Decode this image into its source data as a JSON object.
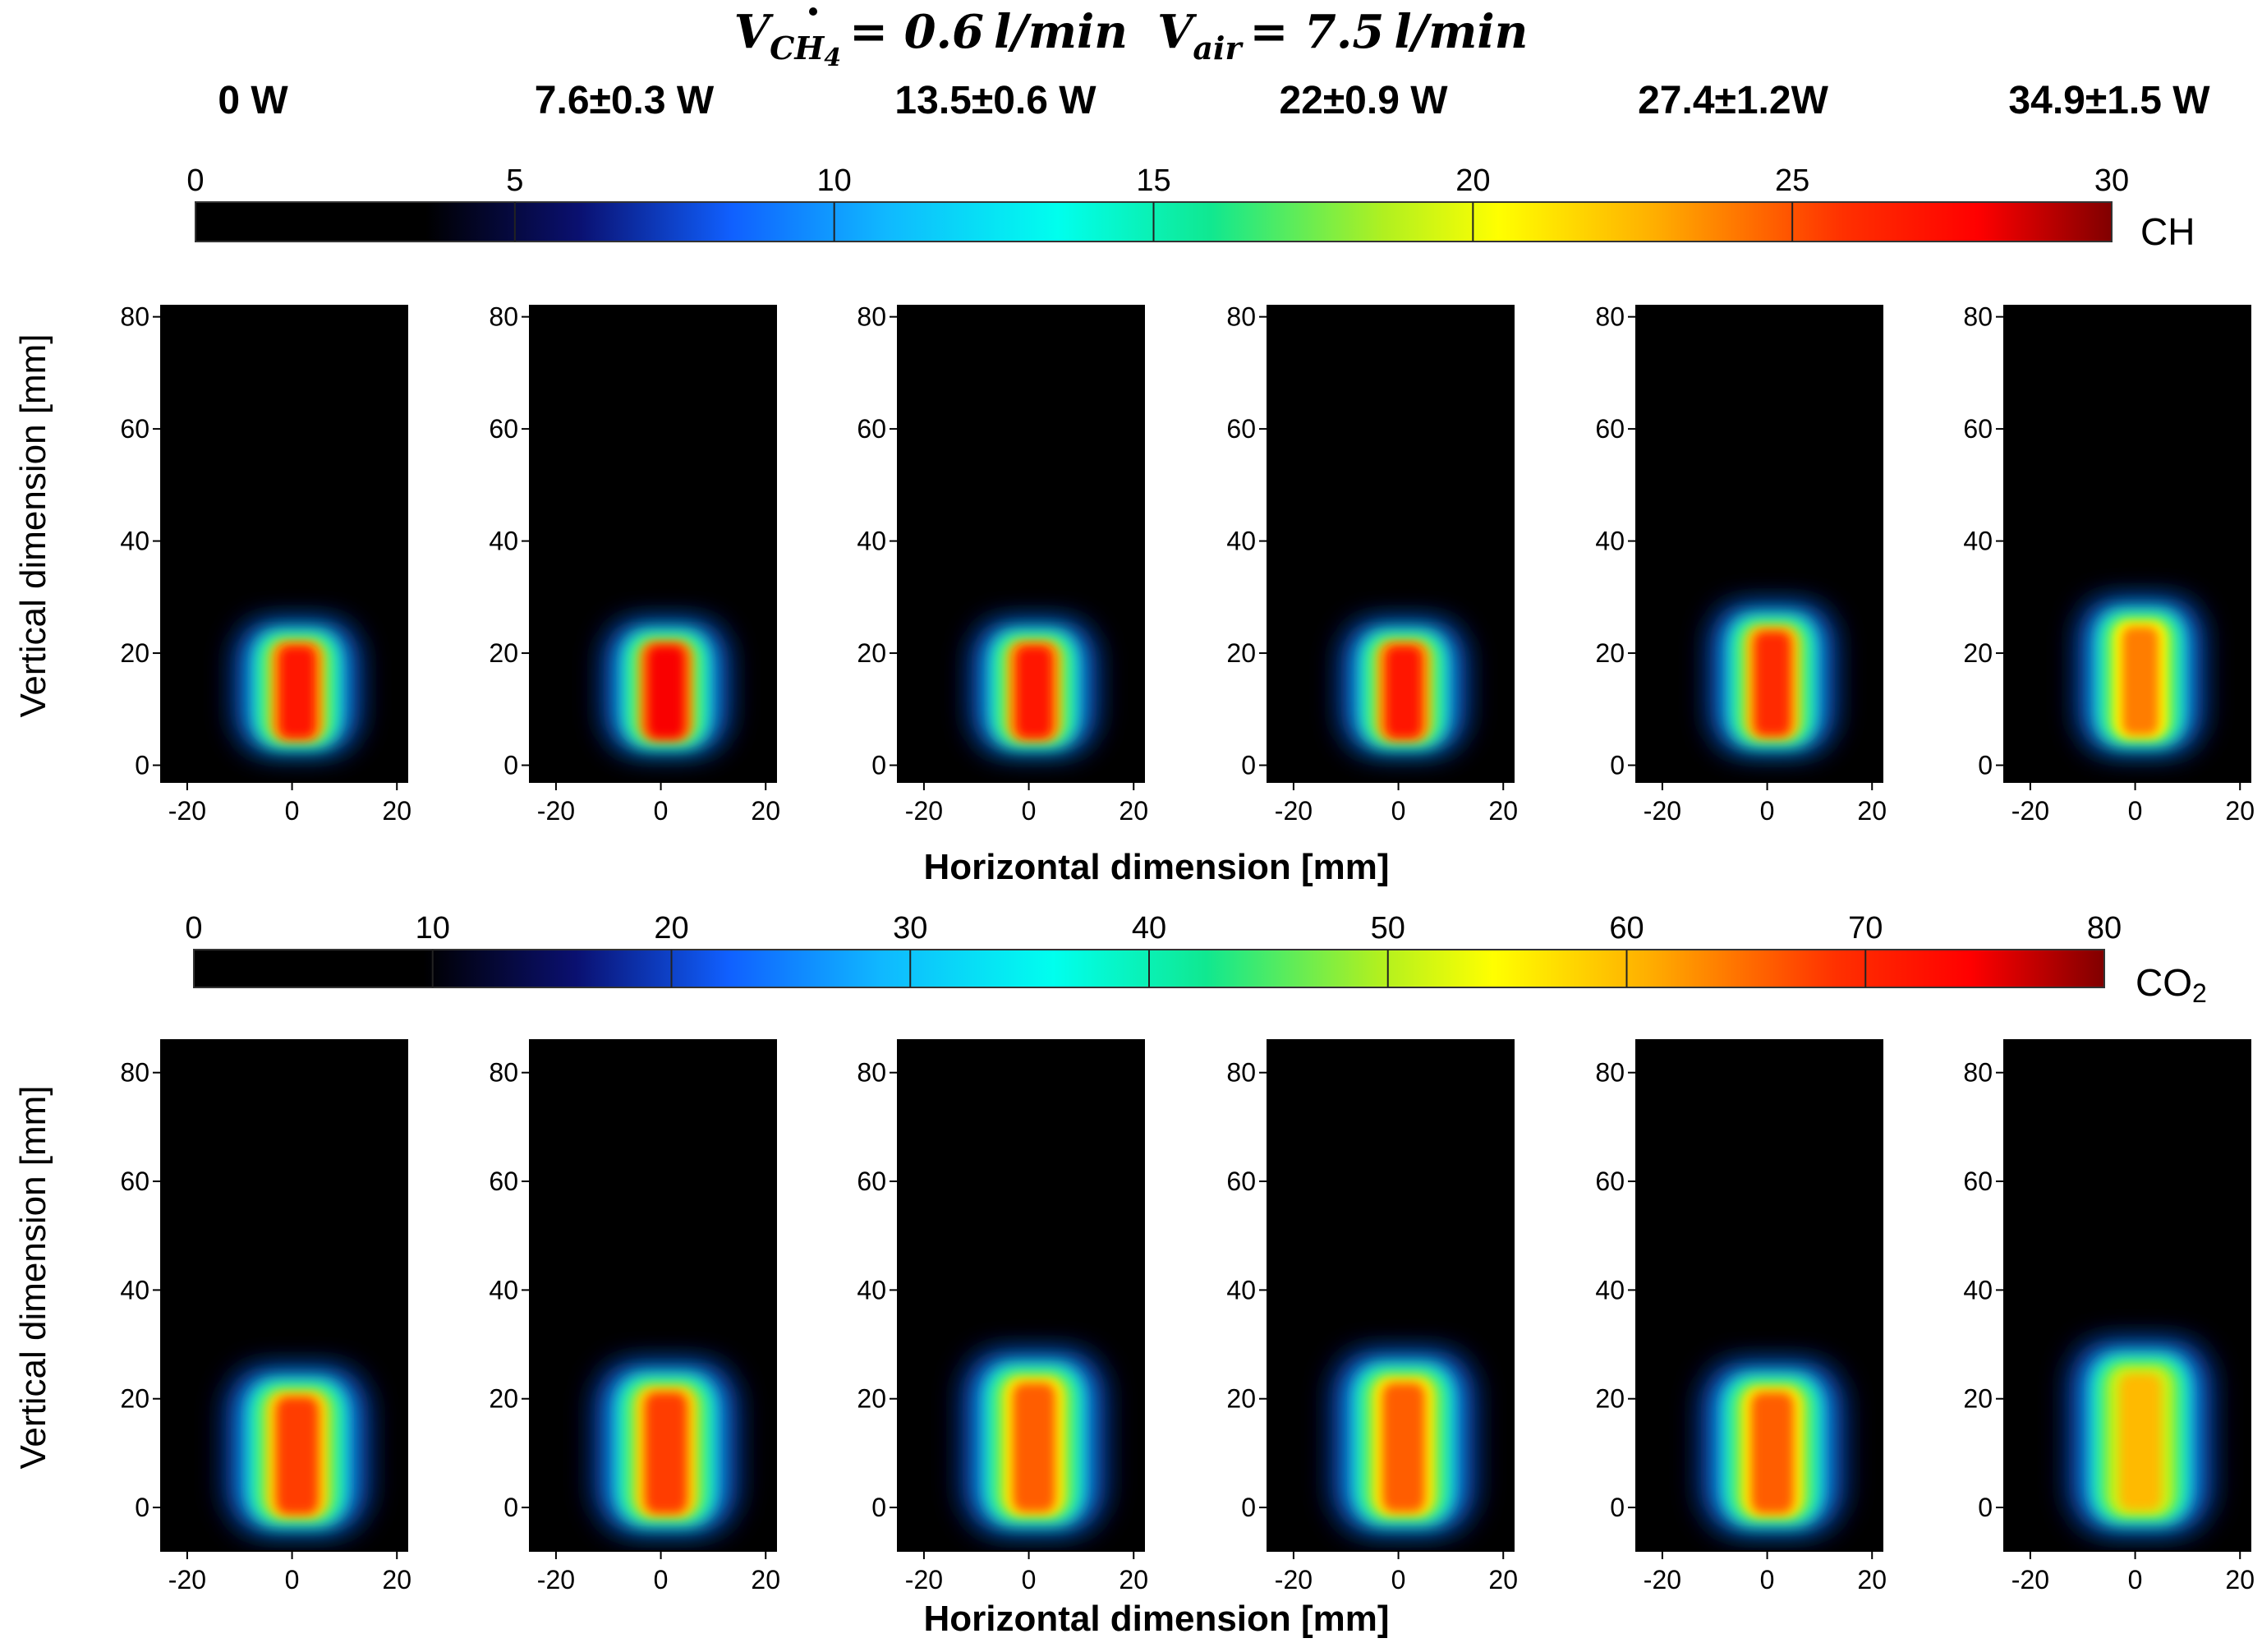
{
  "chart_data": {
    "type": "heatmap",
    "title": {
      "v_ch4_symbol": "V",
      "v_ch4_subscript": "CH",
      "v_ch4_subscript_digit": "4",
      "v_ch4_value": "= 0.6",
      "v_ch4_unit": "l/min",
      "v_air_symbol": "V",
      "v_air_subscript": "air",
      "v_air_value": "= 7.5",
      "v_air_unit": "l/min"
    },
    "power_labels": [
      "0 W",
      "7.6±0.3 W",
      "13.5±0.6 W",
      "22±0.9 W",
      "27.4±1.2W",
      "34.9±1.5 W"
    ],
    "xlabel": "Horizontal  dimension [mm]",
    "ylabel": "Vertical dimension [mm]",
    "x_ticks": [
      "-20",
      "0",
      "20"
    ],
    "y_ticks": [
      "0",
      "20",
      "40",
      "60",
      "80"
    ],
    "xlim": [
      -25,
      22
    ],
    "colormap": "jet",
    "rows": [
      {
        "species": "CH",
        "colorbar_ticks": [
          "0",
          "5",
          "10",
          "15",
          "20",
          "25",
          "30"
        ],
        "colorbar_range": [
          0,
          30
        ],
        "ylim": [
          -3,
          82
        ],
        "panels": [
          {
            "power": "0 W",
            "peak": 27,
            "center_x": 1,
            "y_range": [
              2,
              25
            ],
            "half_width": 7
          },
          {
            "power": "7.6±0.3 W",
            "peak": 28,
            "center_x": 1,
            "y_range": [
              2,
              25
            ],
            "half_width": 7
          },
          {
            "power": "13.5±0.6 W",
            "peak": 27,
            "center_x": 1,
            "y_range": [
              2,
              25
            ],
            "half_width": 7
          },
          {
            "power": "22±0.9 W",
            "peak": 27,
            "center_x": 1,
            "y_range": [
              2,
              25
            ],
            "half_width": 7
          },
          {
            "power": "27.4±1.2W",
            "peak": 26,
            "center_x": 1,
            "y_range": [
              2,
              28
            ],
            "half_width": 7
          },
          {
            "power": "34.9±1.5 W",
            "peak": 24,
            "center_x": 1,
            "y_range": [
              2,
              29
            ],
            "half_width": 7
          }
        ]
      },
      {
        "species": "CO",
        "species_subscript": "2",
        "colorbar_ticks": [
          "0",
          "10",
          "20",
          "30",
          "40",
          "50",
          "60",
          "70",
          "80"
        ],
        "colorbar_range": [
          0,
          80
        ],
        "ylim": [
          -8,
          86
        ],
        "panels": [
          {
            "power": "0 W",
            "peak": 68,
            "center_x": 1,
            "y_range": [
              -5,
              25
            ],
            "half_width": 8
          },
          {
            "power": "7.6±0.3 W",
            "peak": 68,
            "center_x": 1,
            "y_range": [
              -5,
              26
            ],
            "half_width": 8
          },
          {
            "power": "13.5±0.6 W",
            "peak": 66,
            "center_x": 1,
            "y_range": [
              -5,
              28
            ],
            "half_width": 8
          },
          {
            "power": "22±0.9 W",
            "peak": 66,
            "center_x": 1,
            "y_range": [
              -5,
              28
            ],
            "half_width": 8
          },
          {
            "power": "27.4±1.2W",
            "peak": 66,
            "center_x": 1,
            "y_range": [
              -5,
              26
            ],
            "half_width": 8
          },
          {
            "power": "34.9±1.5 W",
            "peak": 60,
            "center_x": 1,
            "y_range": [
              -5,
              30
            ],
            "half_width": 8
          }
        ]
      }
    ]
  }
}
